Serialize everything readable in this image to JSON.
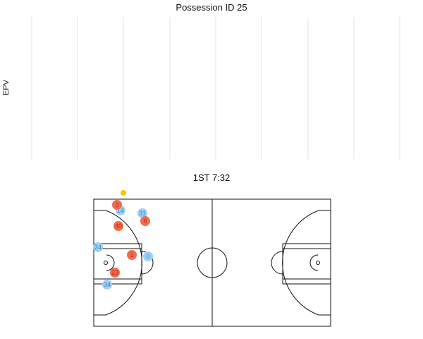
{
  "epv_plot": {
    "title": "Possession ID 25",
    "ylabel": "EPV",
    "gridline_color": "#e3e3e3"
  },
  "court": {
    "title": "1ST 7:32",
    "line_color": "#111111"
  },
  "colors": {
    "home_team": "#f26b4f",
    "away_team": "#9fd1f5",
    "ball": "#f7c600",
    "home_label": "#b03218",
    "away_label": "#3a87c2"
  },
  "players": {
    "home": [
      "3",
      "40",
      "6",
      "1",
      "23"
    ],
    "away": [
      "14",
      "31",
      "24",
      "0",
      "34"
    ]
  },
  "ball": {
    "visible": true
  }
}
